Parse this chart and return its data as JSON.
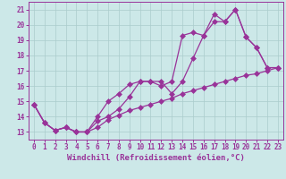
{
  "xlabel": "Windchill (Refroidissement éolien,°C)",
  "background_color": "#cce8e8",
  "grid_color": "#aacccc",
  "line_color": "#993399",
  "xlim": [
    -0.5,
    23.5
  ],
  "ylim": [
    12.5,
    21.5
  ],
  "xticks": [
    0,
    1,
    2,
    3,
    4,
    5,
    6,
    7,
    8,
    9,
    10,
    11,
    12,
    13,
    14,
    15,
    16,
    17,
    18,
    19,
    20,
    21,
    22,
    23
  ],
  "yticks": [
    13,
    14,
    15,
    16,
    17,
    18,
    19,
    20,
    21
  ],
  "line1_x": [
    0,
    1,
    2,
    3,
    4,
    5,
    6,
    7,
    8,
    9,
    10,
    11,
    12,
    13,
    14,
    15,
    16,
    17,
    18,
    19,
    20,
    21,
    22,
    23
  ],
  "line1_y": [
    14.8,
    13.6,
    13.1,
    13.3,
    13.0,
    13.0,
    13.7,
    14.0,
    14.5,
    15.3,
    16.3,
    16.3,
    16.3,
    15.5,
    16.3,
    17.8,
    19.3,
    20.7,
    20.2,
    21.0,
    19.2,
    18.5,
    17.2,
    17.2
  ],
  "line2_x": [
    0,
    1,
    2,
    3,
    4,
    5,
    6,
    7,
    8,
    9,
    10,
    11,
    12,
    13,
    14,
    15,
    16,
    17,
    18,
    19,
    20,
    21,
    22,
    23
  ],
  "line2_y": [
    14.8,
    13.6,
    13.1,
    13.3,
    13.0,
    13.0,
    14.0,
    15.0,
    15.5,
    16.1,
    16.3,
    16.3,
    16.0,
    16.3,
    19.3,
    19.5,
    19.3,
    20.2,
    20.2,
    21.0,
    19.2,
    18.5,
    17.2,
    17.2
  ],
  "line3_x": [
    0,
    1,
    2,
    3,
    4,
    5,
    6,
    7,
    8,
    9,
    10,
    11,
    12,
    13,
    14,
    15,
    16,
    17,
    18,
    19,
    20,
    21,
    22,
    23
  ],
  "line3_y": [
    14.8,
    13.6,
    13.1,
    13.3,
    13.0,
    13.0,
    13.3,
    13.8,
    14.1,
    14.4,
    14.6,
    14.8,
    15.0,
    15.2,
    15.5,
    15.7,
    15.9,
    16.1,
    16.3,
    16.5,
    16.7,
    16.8,
    17.0,
    17.2
  ],
  "marker_size": 3,
  "linewidth": 0.9,
  "xlabel_fontsize": 6.5,
  "tick_fontsize": 5.5,
  "fig_bg": "#cce8e8"
}
